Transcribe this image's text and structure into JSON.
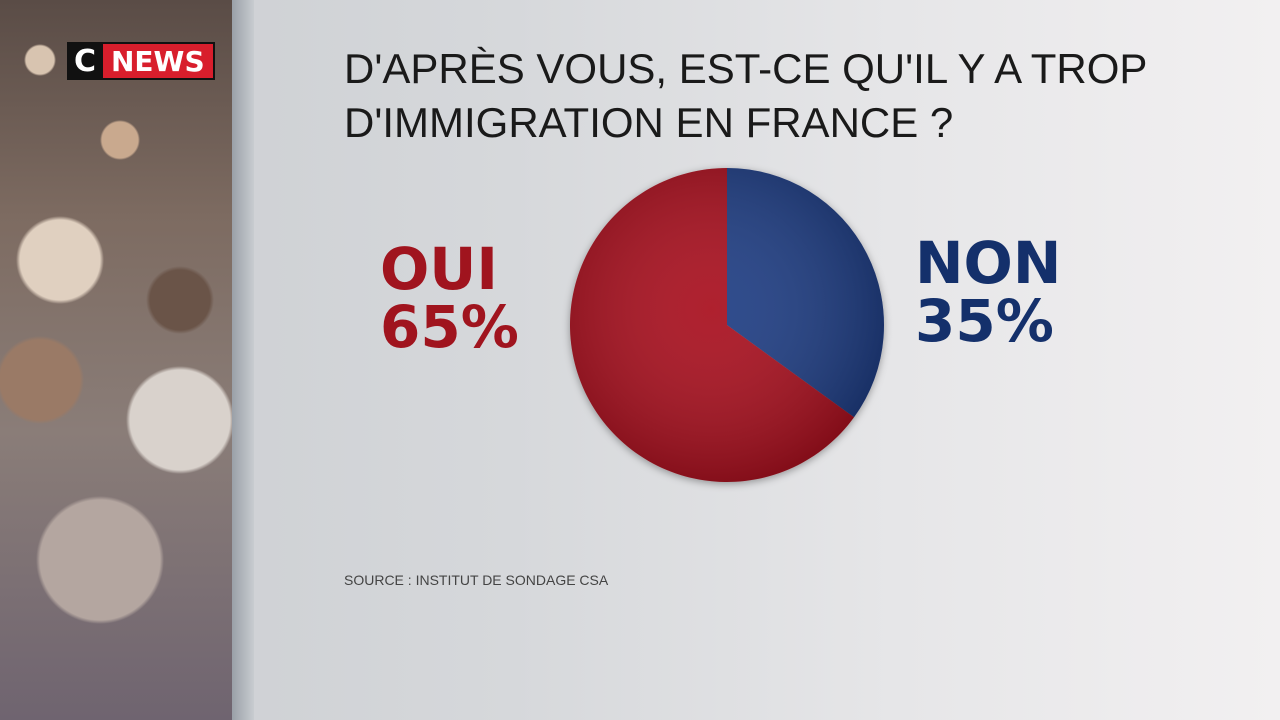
{
  "brand": {
    "logo_c": "C",
    "logo_news": "NEWS"
  },
  "title_line1": "D'APRÈS VOUS, EST-CE QU'IL Y A TROP",
  "title_line2": "D'IMMIGRATION EN FRANCE ?",
  "source": "SOURCE : INSTITUT DE SONDAGE CSA",
  "chart_data": {
    "type": "pie",
    "title": "D'APRÈS VOUS, EST-CE QU'IL Y A TROP D'IMMIGRATION EN FRANCE ?",
    "slices": [
      {
        "label": "NON",
        "value": 35,
        "display": "35%",
        "color": "#1d3a82"
      },
      {
        "label": "OUI",
        "value": 65,
        "display": "65%",
        "color": "#a8101c"
      }
    ],
    "start": "top",
    "direction": "clockwise"
  }
}
